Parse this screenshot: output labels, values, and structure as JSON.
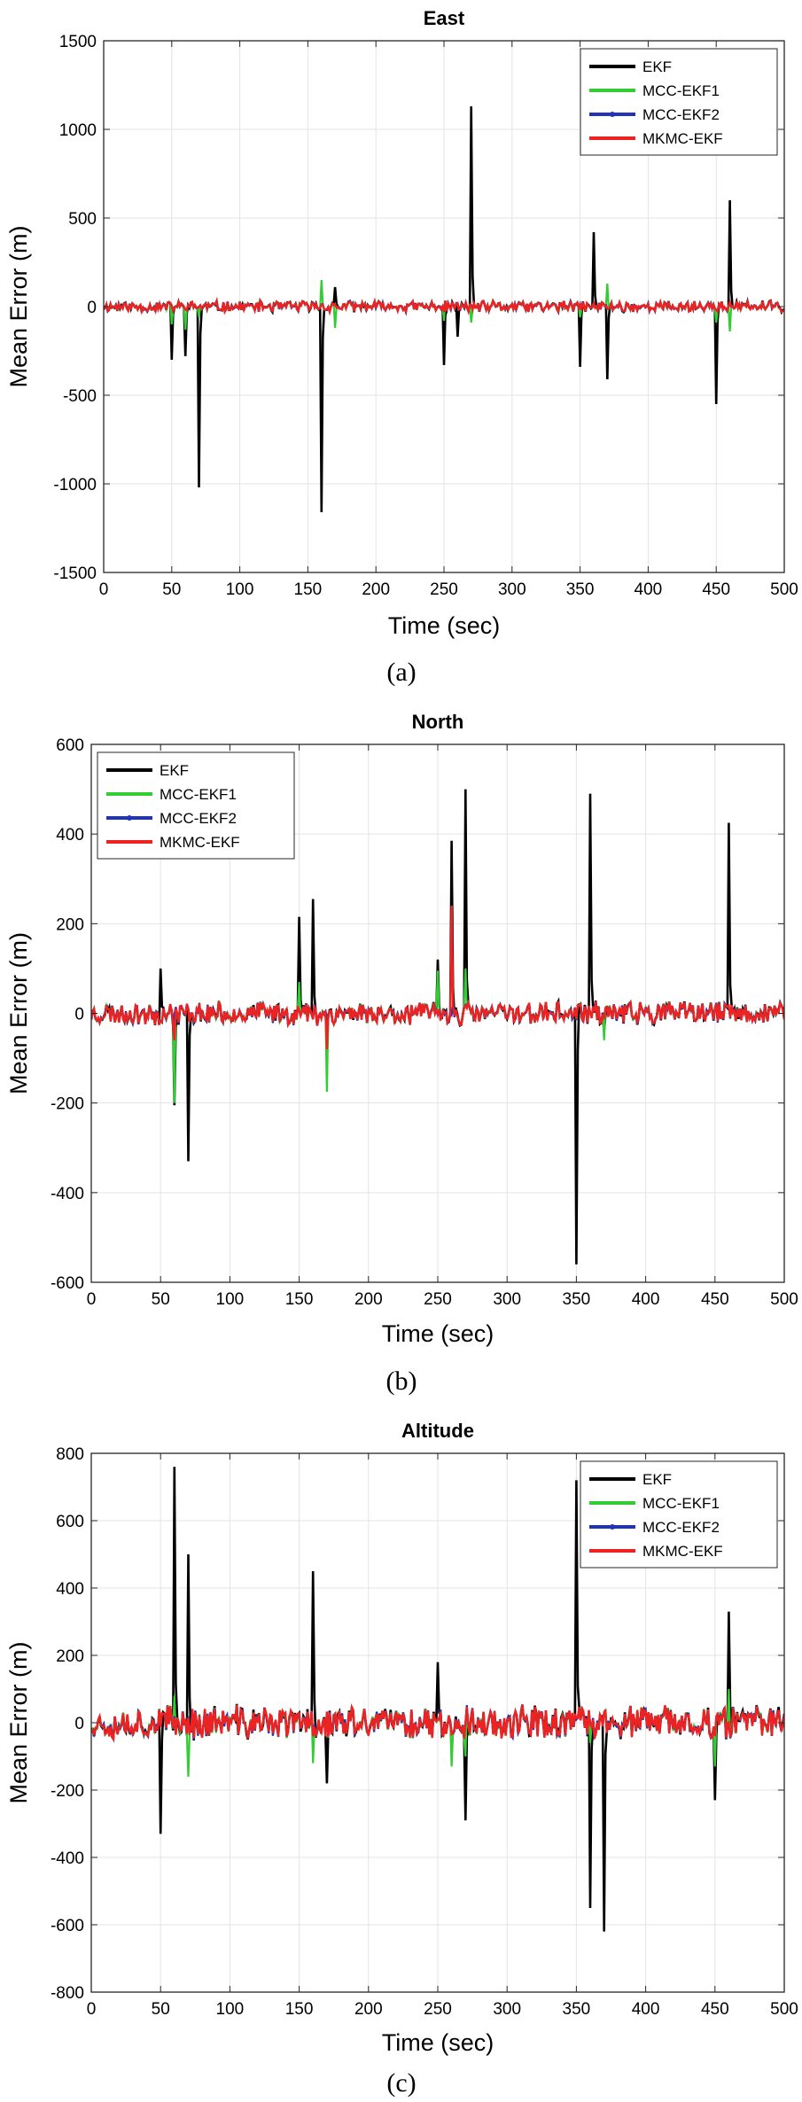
{
  "chart_data": [
    {
      "type": "line",
      "panel": "a",
      "title": "East",
      "xlabel": "Time (sec)",
      "ylabel": "Mean Error (m)",
      "caption": "(a)",
      "xlim": [
        0,
        500
      ],
      "ylim": [
        -1500,
        1500
      ],
      "xticks": [
        0,
        50,
        100,
        150,
        200,
        250,
        300,
        350,
        400,
        450,
        500
      ],
      "yticks": [
        -1500,
        -1000,
        -500,
        0,
        500,
        1000,
        1500
      ],
      "grid": true,
      "legend_position": "top-right",
      "noise": {
        "amplitude": 35,
        "seed": 11
      },
      "series": [
        {
          "name": "EKF",
          "color": "#000000",
          "spikes": [
            [
              50,
              -300
            ],
            [
              60,
              -280
            ],
            [
              70,
              -1020
            ],
            [
              160,
              -1160
            ],
            [
              170,
              110
            ],
            [
              250,
              -330
            ],
            [
              260,
              -170
            ],
            [
              270,
              1130
            ],
            [
              350,
              -340
            ],
            [
              360,
              420
            ],
            [
              370,
              -410
            ],
            [
              450,
              -550
            ],
            [
              460,
              600
            ]
          ]
        },
        {
          "name": "MCC-EKF1",
          "color": "#33cc33",
          "spikes": [
            [
              50,
              -100
            ],
            [
              60,
              -130
            ],
            [
              70,
              -60
            ],
            [
              160,
              150
            ],
            [
              170,
              -120
            ],
            [
              250,
              -80
            ],
            [
              270,
              -90
            ],
            [
              350,
              -60
            ],
            [
              370,
              130
            ],
            [
              450,
              -90
            ],
            [
              460,
              -140
            ]
          ]
        },
        {
          "name": "MCC-EKF2",
          "color": "#2233bb",
          "spikes": []
        },
        {
          "name": "MKMC-EKF",
          "color": "#ee2222",
          "spikes": []
        }
      ]
    },
    {
      "type": "line",
      "panel": "b",
      "title": "North",
      "xlabel": "Time (sec)",
      "ylabel": "Mean Error (m)",
      "caption": "(b)",
      "xlim": [
        0,
        500
      ],
      "ylim": [
        -600,
        600
      ],
      "xticks": [
        0,
        50,
        100,
        150,
        200,
        250,
        300,
        350,
        400,
        450,
        500
      ],
      "yticks": [
        -600,
        -400,
        -200,
        0,
        200,
        400,
        600
      ],
      "grid": true,
      "legend_position": "top-left",
      "noise": {
        "amplitude": 28,
        "seed": 23
      },
      "series": [
        {
          "name": "EKF",
          "color": "#000000",
          "spikes": [
            [
              50,
              100
            ],
            [
              60,
              -205
            ],
            [
              70,
              -330
            ],
            [
              150,
              215
            ],
            [
              160,
              255
            ],
            [
              170,
              -60
            ],
            [
              250,
              120
            ],
            [
              260,
              385
            ],
            [
              270,
              500
            ],
            [
              350,
              -560
            ],
            [
              360,
              490
            ],
            [
              370,
              -40
            ],
            [
              460,
              425
            ]
          ]
        },
        {
          "name": "MCC-EKF1",
          "color": "#33cc33",
          "spikes": [
            [
              60,
              -200
            ],
            [
              150,
              70
            ],
            [
              170,
              -175
            ],
            [
              250,
              95
            ],
            [
              260,
              240
            ],
            [
              270,
              100
            ],
            [
              370,
              -60
            ]
          ]
        },
        {
          "name": "MCC-EKF2",
          "color": "#2233bb",
          "spikes": []
        },
        {
          "name": "MKMC-EKF",
          "color": "#ee2222",
          "spikes": [
            [
              60,
              -60
            ],
            [
              170,
              -80
            ],
            [
              260,
              240
            ]
          ]
        }
      ]
    },
    {
      "type": "line",
      "panel": "c",
      "title": "Altitude",
      "xlabel": "Time (sec)",
      "ylabel": "Mean Error (m)",
      "caption": "(c)",
      "xlim": [
        0,
        500
      ],
      "ylim": [
        -800,
        800
      ],
      "xticks": [
        0,
        50,
        100,
        150,
        200,
        250,
        300,
        350,
        400,
        450,
        500
      ],
      "yticks": [
        -800,
        -600,
        -400,
        -200,
        0,
        200,
        400,
        600,
        800
      ],
      "grid": true,
      "legend_position": "top-right",
      "noise": {
        "amplitude": 55,
        "seed": 37
      },
      "series": [
        {
          "name": "EKF",
          "color": "#000000",
          "spikes": [
            [
              50,
              -330
            ],
            [
              60,
              760
            ],
            [
              70,
              500
            ],
            [
              160,
              450
            ],
            [
              170,
              -180
            ],
            [
              250,
              180
            ],
            [
              270,
              -290
            ],
            [
              350,
              720
            ],
            [
              360,
              -550
            ],
            [
              370,
              -620
            ],
            [
              450,
              -230
            ],
            [
              460,
              330
            ]
          ]
        },
        {
          "name": "MCC-EKF1",
          "color": "#33cc33",
          "spikes": [
            [
              60,
              80
            ],
            [
              70,
              -160
            ],
            [
              160,
              -120
            ],
            [
              260,
              -130
            ],
            [
              270,
              -100
            ],
            [
              360,
              -60
            ],
            [
              450,
              -130
            ],
            [
              460,
              100
            ]
          ]
        },
        {
          "name": "MCC-EKF2",
          "color": "#2233bb",
          "spikes": []
        },
        {
          "name": "MKMC-EKF",
          "color": "#ee2222",
          "spikes": []
        }
      ]
    }
  ]
}
